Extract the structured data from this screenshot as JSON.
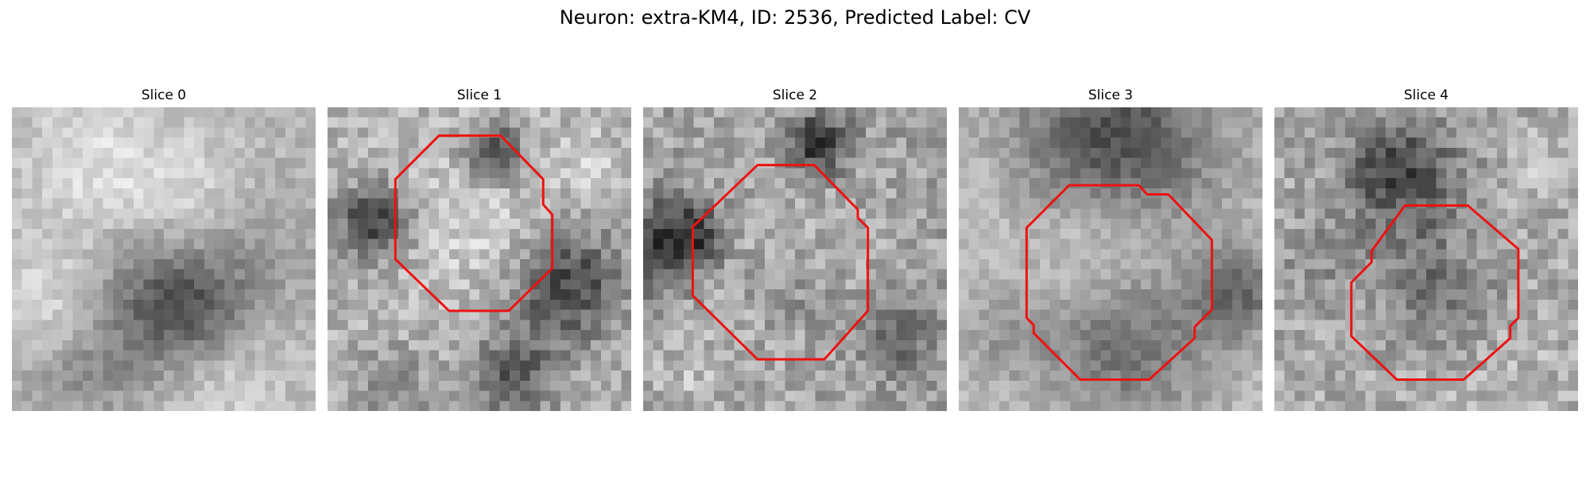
{
  "figure": {
    "title": "Neuron: extra-KM4, ID: 2536, Predicted Label: CV",
    "contour_color": "#ee1111",
    "colormap": "gray",
    "grid_resolution": 30
  },
  "slices": [
    {
      "label": "Slice 0",
      "has_contour": false
    },
    {
      "label": "Slice 1",
      "has_contour": true
    },
    {
      "label": "Slice 2",
      "has_contour": true
    },
    {
      "label": "Slice 3",
      "has_contour": true
    },
    {
      "label": "Slice 4",
      "has_contour": true
    }
  ]
}
